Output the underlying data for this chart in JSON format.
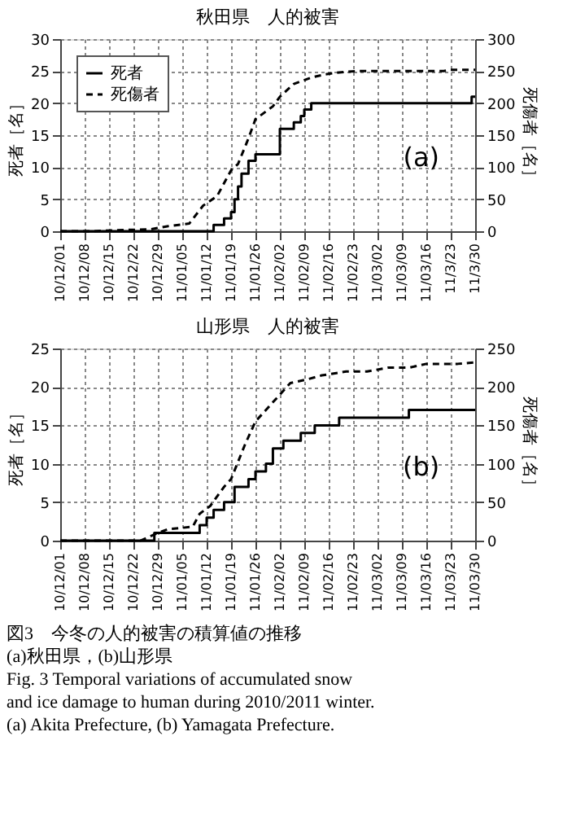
{
  "chart_data": [
    {
      "type": "line",
      "title": "秋田県　人的被害",
      "ylabel": "死者［名］",
      "y2label": "死傷者［名］",
      "xlim": [
        "2010-12-01",
        "2011-03-30"
      ],
      "xticks": [
        {
          "value": "2010-12-01",
          "label": "10/12/01"
        },
        {
          "value": "2010-12-08",
          "label": "10/12/08"
        },
        {
          "value": "2010-12-15",
          "label": "10/12/15"
        },
        {
          "value": "2010-12-22",
          "label": "10/12/22"
        },
        {
          "value": "2010-12-29",
          "label": "10/12/29"
        },
        {
          "value": "2011-01-05",
          "label": "11/01/05"
        },
        {
          "value": "2011-01-12",
          "label": "11/01/12"
        },
        {
          "value": "2011-01-19",
          "label": "11/01/19"
        },
        {
          "value": "2011-01-26",
          "label": "11/01/26"
        },
        {
          "value": "2011-02-02",
          "label": "11/02/02"
        },
        {
          "value": "2011-02-09",
          "label": "11/02/09"
        },
        {
          "value": "2011-02-16",
          "label": "11/02/16"
        },
        {
          "value": "2011-02-23",
          "label": "11/02/23"
        },
        {
          "value": "2011-03-02",
          "label": "11/03/02"
        },
        {
          "value": "2011-03-09",
          "label": "11/03/09"
        },
        {
          "value": "2011-03-16",
          "label": "11/03/16"
        },
        {
          "value": "2011-03-23",
          "label": "11/3/23"
        },
        {
          "value": "2011-03-30",
          "label": "11/3/30"
        }
      ],
      "ylim": [
        0,
        30
      ],
      "yticks": [
        0,
        5,
        10,
        15,
        20,
        25,
        30
      ],
      "y2lim": [
        0,
        300
      ],
      "y2ticks": [
        0,
        50,
        100,
        150,
        200,
        250,
        300
      ],
      "grid": true,
      "legend": "top left",
      "annotations": [
        "(a)"
      ],
      "series": [
        {
          "name": "死者",
          "type": "step",
          "color": "#000000",
          "line_style": "solid",
          "x": [
            "2010-12-01",
            "2011-01-14",
            "2011-01-17",
            "2011-01-19",
            "2011-01-20",
            "2011-01-21",
            "2011-01-22",
            "2011-01-24",
            "2011-01-26",
            "2011-02-02",
            "2011-02-06",
            "2011-02-08",
            "2011-02-09",
            "2011-02-11",
            "2011-03-29",
            "2011-03-30"
          ],
          "values": [
            0,
            1,
            2,
            3,
            5,
            7,
            9,
            11,
            12,
            16,
            17,
            18,
            19,
            20,
            21,
            21
          ]
        },
        {
          "name": "死傷者",
          "axis": "y2",
          "color": "#000000",
          "line_style": "dashed",
          "x": [
            "2010-12-01",
            "2010-12-10",
            "2010-12-20",
            "2010-12-27",
            "2011-01-01",
            "2011-01-07",
            "2011-01-11",
            "2011-01-15",
            "2011-01-19",
            "2011-01-21",
            "2011-01-24",
            "2011-01-26",
            "2011-01-31",
            "2011-02-02",
            "2011-02-06",
            "2011-02-11",
            "2011-02-15",
            "2011-02-19",
            "2011-02-24",
            "2011-03-21",
            "2011-03-23",
            "2011-03-30"
          ],
          "values": [
            0,
            0,
            2,
            3,
            8,
            12,
            40,
            55,
            95,
            105,
            145,
            175,
            195,
            210,
            230,
            240,
            245,
            248,
            250,
            250,
            252,
            252
          ]
        }
      ]
    },
    {
      "type": "line",
      "title": "山形県　人的被害",
      "ylabel": "死者［名］",
      "y2label": "死傷者［名］",
      "xlim": [
        "2010-12-01",
        "2011-03-30"
      ],
      "xticks": [
        {
          "value": "2010-12-01",
          "label": "10/12/01"
        },
        {
          "value": "2010-12-08",
          "label": "10/12/08"
        },
        {
          "value": "2010-12-15",
          "label": "10/12/15"
        },
        {
          "value": "2010-12-22",
          "label": "10/12/22"
        },
        {
          "value": "2010-12-29",
          "label": "10/12/29"
        },
        {
          "value": "2011-01-05",
          "label": "11/01/05"
        },
        {
          "value": "2011-01-12",
          "label": "11/01/12"
        },
        {
          "value": "2011-01-19",
          "label": "11/01/19"
        },
        {
          "value": "2011-01-26",
          "label": "11/01/26"
        },
        {
          "value": "2011-02-02",
          "label": "11/02/02"
        },
        {
          "value": "2011-02-09",
          "label": "11/02/09"
        },
        {
          "value": "2011-02-16",
          "label": "11/02/16"
        },
        {
          "value": "2011-02-23",
          "label": "11/02/23"
        },
        {
          "value": "2011-03-02",
          "label": "11/03/02"
        },
        {
          "value": "2011-03-09",
          "label": "11/03/09"
        },
        {
          "value": "2011-03-16",
          "label": "11/03/16"
        },
        {
          "value": "2011-03-23",
          "label": "11/03/23"
        },
        {
          "value": "2011-03-30",
          "label": "11/03/30"
        }
      ],
      "ylim": [
        0,
        25
      ],
      "yticks": [
        0,
        5,
        10,
        15,
        20,
        25
      ],
      "y2lim": [
        0,
        250
      ],
      "y2ticks": [
        0,
        50,
        100,
        150,
        200,
        250
      ],
      "grid": true,
      "legend": "top left",
      "annotations": [
        "(b)",
        "図3　今冬の人的被害の積算値の推移",
        "(a)秋田県，(b)山形県",
        "Fig. 3  Temporal variations of accumulated snow and ice damage to human during 2010/2011 winter. (a) Akita Prefecture, (b) Yamagata Prefecture."
      ],
      "series": [
        {
          "name": "死者",
          "type": "step",
          "color": "#000000",
          "line_style": "solid",
          "x": [
            "2010-12-01",
            "2010-12-28",
            "2011-01-10",
            "2011-01-12",
            "2011-01-14",
            "2011-01-17",
            "2011-01-20",
            "2011-01-24",
            "2011-01-26",
            "2011-01-29",
            "2011-01-31",
            "2011-02-03",
            "2011-02-08",
            "2011-02-12",
            "2011-02-19",
            "2011-03-11",
            "2011-03-30"
          ],
          "values": [
            0,
            1,
            2,
            3,
            4,
            5,
            7,
            8,
            9,
            10,
            12,
            13,
            14,
            15,
            16,
            17,
            17
          ]
        },
        {
          "name": "死傷者",
          "axis": "y2",
          "color": "#000000",
          "line_style": "dashed",
          "x": [
            "2010-12-01",
            "2010-12-24",
            "2010-12-29",
            "2011-01-01",
            "2011-01-08",
            "2011-01-10",
            "2011-01-13",
            "2011-01-17",
            "2011-01-19",
            "2011-01-23",
            "2011-01-26",
            "2011-01-31",
            "2011-02-05",
            "2011-02-10",
            "2011-02-14",
            "2011-02-21",
            "2011-02-27",
            "2011-03-05",
            "2011-03-11",
            "2011-03-16",
            "2011-03-25",
            "2011-03-30"
          ],
          "values": [
            0,
            0,
            10,
            15,
            18,
            35,
            45,
            70,
            80,
            125,
            155,
            180,
            205,
            210,
            215,
            220,
            220,
            225,
            225,
            230,
            230,
            232
          ]
        }
      ]
    }
  ]
}
